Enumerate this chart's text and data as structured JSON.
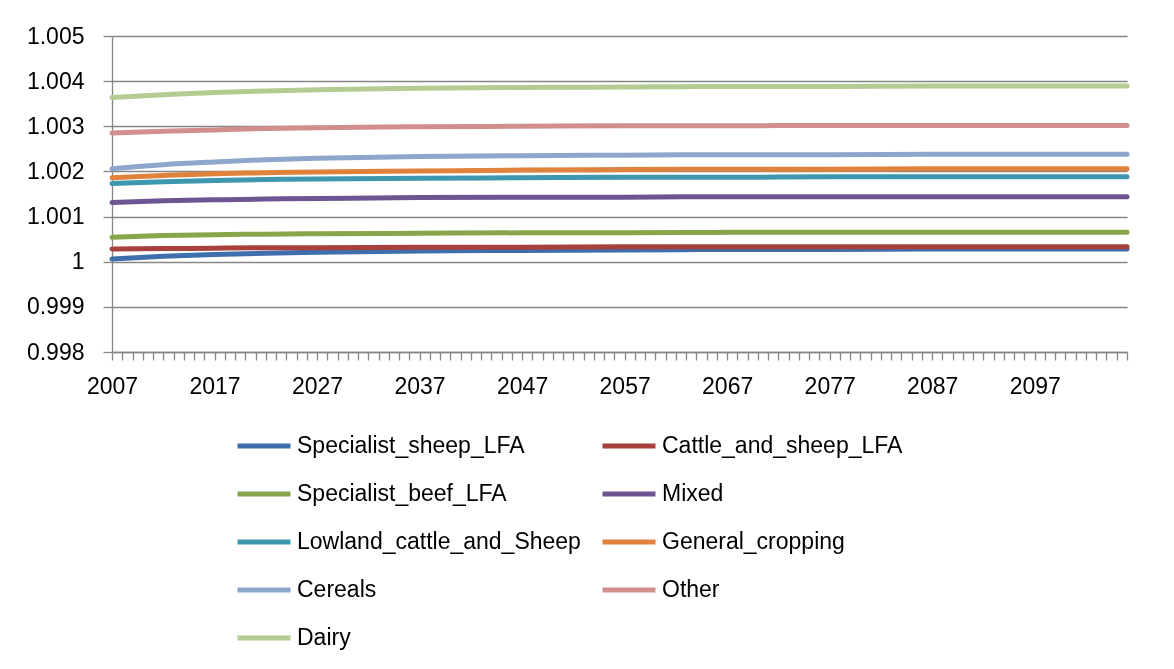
{
  "chart_data": {
    "type": "line",
    "x": [
      2007,
      2012,
      2017,
      2022,
      2027,
      2037,
      2047,
      2057,
      2067,
      2077,
      2087,
      2097,
      2106
    ],
    "xlim": [
      2007,
      2106
    ],
    "xticks": [
      2007,
      {
        "value": 2008,
        "label": null
      },
      {
        "value": 2009,
        "label": null
      },
      {
        "value": 2010,
        "label": null
      },
      {
        "value": 2011,
        "label": null
      },
      {
        "value": 2012,
        "label": null
      },
      {
        "value": 2013,
        "label": null
      },
      {
        "value": 2014,
        "label": null
      },
      {
        "value": 2015,
        "label": null
      },
      {
        "value": 2016,
        "label": null
      },
      2017,
      {
        "value": 2018,
        "label": null
      },
      {
        "value": 2019,
        "label": null
      },
      {
        "value": 2020,
        "label": null
      },
      {
        "value": 2021,
        "label": null
      },
      {
        "value": 2022,
        "label": null
      },
      {
        "value": 2023,
        "label": null
      },
      {
        "value": 2024,
        "label": null
      },
      {
        "value": 2025,
        "label": null
      },
      {
        "value": 2026,
        "label": null
      },
      2027,
      {
        "value": 2028,
        "label": null
      },
      {
        "value": 2029,
        "label": null
      },
      {
        "value": 2030,
        "label": null
      },
      {
        "value": 2031,
        "label": null
      },
      {
        "value": 2032,
        "label": null
      },
      {
        "value": 2033,
        "label": null
      },
      {
        "value": 2034,
        "label": null
      },
      {
        "value": 2035,
        "label": null
      },
      {
        "value": 2036,
        "label": null
      },
      2037,
      {
        "value": 2038,
        "label": null
      },
      {
        "value": 2039,
        "label": null
      },
      {
        "value": 2040,
        "label": null
      },
      {
        "value": 2041,
        "label": null
      },
      {
        "value": 2042,
        "label": null
      },
      {
        "value": 2043,
        "label": null
      },
      {
        "value": 2044,
        "label": null
      },
      {
        "value": 2045,
        "label": null
      },
      {
        "value": 2046,
        "label": null
      },
      2047,
      {
        "value": 2048,
        "label": null
      },
      {
        "value": 2049,
        "label": null
      },
      {
        "value": 2050,
        "label": null
      },
      {
        "value": 2051,
        "label": null
      },
      {
        "value": 2052,
        "label": null
      },
      {
        "value": 2053,
        "label": null
      },
      {
        "value": 2054,
        "label": null
      },
      {
        "value": 2055,
        "label": null
      },
      {
        "value": 2056,
        "label": null
      },
      2057,
      {
        "value": 2058,
        "label": null
      },
      {
        "value": 2059,
        "label": null
      },
      {
        "value": 2060,
        "label": null
      },
      {
        "value": 2061,
        "label": null
      },
      {
        "value": 2062,
        "label": null
      },
      {
        "value": 2063,
        "label": null
      },
      {
        "value": 2064,
        "label": null
      },
      {
        "value": 2065,
        "label": null
      },
      {
        "value": 2066,
        "label": null
      },
      2067,
      {
        "value": 2068,
        "label": null
      },
      {
        "value": 2069,
        "label": null
      },
      {
        "value": 2070,
        "label": null
      },
      {
        "value": 2071,
        "label": null
      },
      {
        "value": 2072,
        "label": null
      },
      {
        "value": 2073,
        "label": null
      },
      {
        "value": 2074,
        "label": null
      },
      {
        "value": 2075,
        "label": null
      },
      {
        "value": 2076,
        "label": null
      },
      2077,
      {
        "value": 2078,
        "label": null
      },
      {
        "value": 2079,
        "label": null
      },
      {
        "value": 2080,
        "label": null
      },
      {
        "value": 2081,
        "label": null
      },
      {
        "value": 2082,
        "label": null
      },
      {
        "value": 2083,
        "label": null
      },
      {
        "value": 2084,
        "label": null
      },
      {
        "value": 2085,
        "label": null
      },
      {
        "value": 2086,
        "label": null
      },
      2087,
      {
        "value": 2088,
        "label": null
      },
      {
        "value": 2089,
        "label": null
      },
      {
        "value": 2090,
        "label": null
      },
      {
        "value": 2091,
        "label": null
      },
      {
        "value": 2092,
        "label": null
      },
      {
        "value": 2093,
        "label": null
      },
      {
        "value": 2094,
        "label": null
      },
      {
        "value": 2095,
        "label": null
      },
      {
        "value": 2096,
        "label": null
      },
      2097,
      {
        "value": 2098,
        "label": null
      },
      {
        "value": 2099,
        "label": null
      },
      {
        "value": 2100,
        "label": null
      },
      {
        "value": 2101,
        "label": null
      },
      {
        "value": 2102,
        "label": null
      },
      {
        "value": 2103,
        "label": null
      },
      {
        "value": 2104,
        "label": null
      },
      {
        "value": 2105,
        "label": null
      },
      {
        "value": 2106,
        "label": null
      }
    ],
    "ylim": [
      0.998,
      1.005
    ],
    "yticks": [
      0.998,
      0.999,
      1,
      1.001,
      1.002,
      1.003,
      1.004,
      1.005
    ],
    "grid": "y",
    "legend": "bottom",
    "series": [
      {
        "name": "Specialist_sheep_LFA",
        "color": "#3e6eab",
        "values": [
          1.00006,
          1.00012,
          1.00016,
          1.00019,
          1.00021,
          1.00024,
          1.00025,
          1.00026,
          1.00027,
          1.00027,
          1.00028,
          1.00028,
          1.00028
        ]
      },
      {
        "name": "Cattle_and_sheep_LFA",
        "color": "#a8403c",
        "values": [
          1.00028,
          1.00029,
          1.0003,
          1.00031,
          1.00031,
          1.00032,
          1.00032,
          1.00033,
          1.00033,
          1.00033,
          1.00033,
          1.00033,
          1.00033
        ]
      },
      {
        "name": "Specialist_beef_LFA",
        "color": "#87a54b",
        "values": [
          1.00054,
          1.00058,
          1.0006,
          1.00061,
          1.00062,
          1.00063,
          1.00064,
          1.00064,
          1.00065,
          1.00065,
          1.00065,
          1.00065,
          1.00065
        ]
      },
      {
        "name": "Mixed",
        "color": "#6e5591",
        "values": [
          1.00131,
          1.00135,
          1.00137,
          1.00139,
          1.0014,
          1.00142,
          1.00143,
          1.00143,
          1.00144,
          1.00144,
          1.00144,
          1.00144,
          1.00144
        ]
      },
      {
        "name": "Lowland_cattle_and_Sheep",
        "color": "#3d97ae",
        "values": [
          1.00173,
          1.00177,
          1.0018,
          1.00182,
          1.00183,
          1.00185,
          1.00186,
          1.00187,
          1.00187,
          1.00188,
          1.00188,
          1.00188,
          1.00188
        ]
      },
      {
        "name": "General_cropping",
        "color": "#e0823b",
        "values": [
          1.00186,
          1.00191,
          1.00195,
          1.00197,
          1.00199,
          1.00201,
          1.00203,
          1.00204,
          1.00205,
          1.00205,
          1.00206,
          1.00206,
          1.00206
        ]
      },
      {
        "name": "Cereals",
        "color": "#8ea6cc",
        "values": [
          1.00206,
          1.00215,
          1.00221,
          1.00226,
          1.00229,
          1.00233,
          1.00235,
          1.00236,
          1.00237,
          1.00237,
          1.00238,
          1.00238,
          1.00238
        ]
      },
      {
        "name": "Other",
        "color": "#d08e8d",
        "values": [
          1.00285,
          1.00289,
          1.00292,
          1.00295,
          1.00297,
          1.00299,
          1.003,
          1.00301,
          1.00301,
          1.00302,
          1.00302,
          1.00302,
          1.00302
        ]
      },
      {
        "name": "Dairy",
        "color": "#b3cc92",
        "values": [
          1.00364,
          1.0037,
          1.00375,
          1.00378,
          1.00381,
          1.00384,
          1.00386,
          1.00387,
          1.00388,
          1.00388,
          1.00389,
          1.00389,
          1.00389
        ]
      }
    ]
  }
}
